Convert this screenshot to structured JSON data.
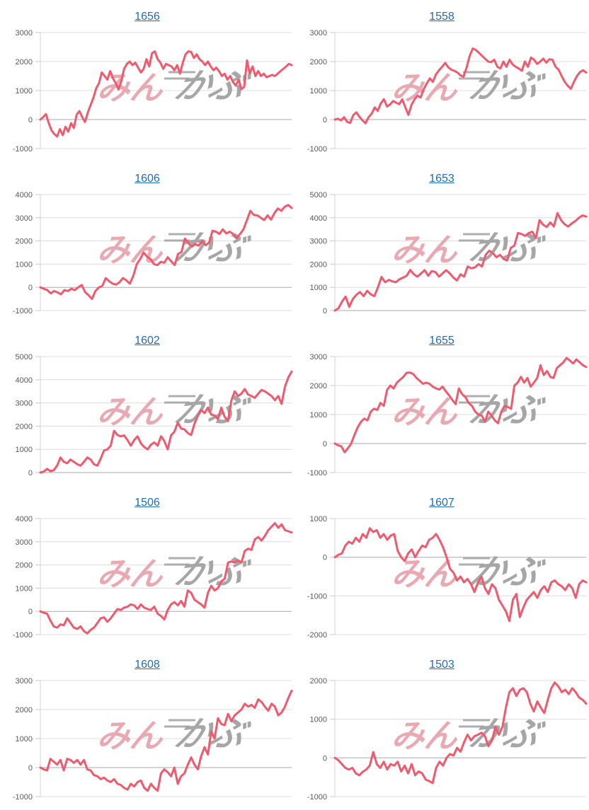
{
  "styles": {
    "background": "#ffffff",
    "line_color": "#ee5a6e",
    "grid_color": "#dcdcdc",
    "zero_line_color": "#aaaaaa",
    "axis_line_color": "#d3d3d3",
    "tick_stub_color": "#c9c9c9",
    "tick_label_color": "#595959",
    "title_color": "#1e6bb8",
    "watermark_pink": "#e7a0ab",
    "watermark_gray": "#a2a2a2"
  },
  "watermark": {
    "pink_text": "みん",
    "gray_text": "かぶ"
  },
  "chart_data": [
    {
      "type": "line",
      "title": "1656",
      "ylim": [
        -1000,
        3000
      ],
      "yticks": [
        3000,
        2000,
        1000,
        0,
        -1000
      ],
      "grid": true,
      "xlabel": "",
      "ylabel": "",
      "values": [
        0,
        80,
        190,
        -120,
        -375,
        -500,
        -585,
        -330,
        -540,
        -250,
        -420,
        -125,
        -290,
        170,
        290,
        80,
        -85,
        250,
        500,
        750,
        1080,
        1250,
        1625,
        1500,
        1375,
        1670,
        1420,
        1250,
        1040,
        1330,
        1750,
        1920,
        2000,
        1875,
        1960,
        1790,
        1625,
        1750,
        2080,
        1830,
        2290,
        2350,
        2080,
        1960,
        1750,
        1920,
        1875,
        1830,
        1700,
        1875,
        1580,
        1960,
        2250,
        2350,
        2330,
        2125,
        2250,
        2080,
        2000,
        1875,
        2000,
        1830,
        1700,
        1790,
        1670,
        1500,
        1580,
        1375,
        1500,
        1290,
        1170,
        1375,
        1050,
        1125,
        2040,
        1580,
        1830,
        1500,
        1670,
        1500,
        1580,
        1460,
        1500,
        1540,
        1500,
        1580,
        1670,
        1750,
        1830,
        1920,
        1875
      ]
    },
    {
      "type": "line",
      "title": "1558",
      "ylim": [
        -1000,
        3000
      ],
      "yticks": [
        3000,
        2000,
        1000,
        0,
        -1000
      ],
      "grid": true,
      "xlabel": "",
      "ylabel": "",
      "values": [
        0,
        30,
        -30,
        80,
        -80,
        -120,
        150,
        250,
        100,
        -30,
        -130,
        80,
        200,
        420,
        300,
        560,
        700,
        450,
        520,
        640,
        580,
        530,
        700,
        420,
        160,
        500,
        700,
        820,
        760,
        1050,
        1250,
        1420,
        1300,
        1560,
        1700,
        1820,
        1950,
        1800,
        1720,
        1680,
        1620,
        1520,
        1480,
        1800,
        2200,
        2450,
        2400,
        2300,
        2200,
        2100,
        2000,
        1980,
        2060,
        1820,
        1760,
        2000,
        1820,
        2060,
        1900,
        1820,
        1760,
        1680,
        2000,
        1820,
        2140,
        2060,
        1920,
        2000,
        2100,
        1960,
        2080,
        2060,
        1820,
        1720,
        1500,
        1300,
        1160,
        1060,
        1300,
        1500,
        1640,
        1700,
        1620
      ]
    },
    {
      "type": "line",
      "title": "1606",
      "ylim": [
        -1000,
        4000
      ],
      "yticks": [
        4000,
        3000,
        2000,
        1000,
        0,
        -1000
      ],
      "grid": true,
      "xlabel": "",
      "ylabel": "",
      "values": [
        0,
        -60,
        -120,
        -260,
        -160,
        -220,
        -300,
        -120,
        -160,
        -60,
        -120,
        0,
        100,
        -200,
        -340,
        -500,
        -160,
        0,
        60,
        400,
        260,
        160,
        120,
        220,
        400,
        300,
        160,
        500,
        1000,
        1220,
        1500,
        1320,
        1220,
        1000,
        960,
        1100,
        1060,
        1300,
        1120,
        960,
        1440,
        1520,
        2100,
        1900,
        1760,
        1860,
        1800,
        2000,
        1820,
        1920,
        2440,
        2400,
        2300,
        2500,
        2320,
        2400,
        2300,
        2120,
        2300,
        2500,
        2900,
        3300,
        3120,
        3100,
        3000,
        2900,
        3100,
        2920,
        3200,
        3400,
        3300,
        3480,
        3550,
        3420
      ]
    },
    {
      "type": "line",
      "title": "1653",
      "ylim": [
        0,
        5000
      ],
      "yticks": [
        5000,
        4000,
        3000,
        2000,
        1000,
        0
      ],
      "grid": true,
      "xlabel": "",
      "ylabel": "",
      "values": [
        0,
        100,
        380,
        600,
        160,
        500,
        680,
        800,
        620,
        850,
        700,
        620,
        1000,
        1450,
        1220,
        1320,
        1260,
        1220,
        1350,
        1420,
        1500,
        1750,
        1560,
        1460,
        1600,
        1740,
        1500,
        1700,
        1660,
        1460,
        1600,
        1740,
        1600,
        1420,
        1300,
        1560,
        1460,
        1900,
        1820,
        1860,
        2000,
        1900,
        2400,
        2580,
        2480,
        2300,
        2400,
        2220,
        2160,
        2700,
        2800,
        3340,
        3300,
        3220,
        3340,
        3400,
        3120,
        3900,
        3700,
        3600,
        3800,
        3620,
        4200,
        3900,
        3720,
        3620,
        3760,
        3860,
        4000,
        4100,
        4050
      ]
    },
    {
      "type": "line",
      "title": "1602",
      "ylim": [
        0,
        5000
      ],
      "yticks": [
        5000,
        4000,
        3000,
        2000,
        1000,
        0
      ],
      "grid": true,
      "xlabel": "",
      "ylabel": "",
      "values": [
        0,
        40,
        160,
        60,
        100,
        300,
        650,
        460,
        400,
        560,
        460,
        360,
        300,
        460,
        650,
        560,
        360,
        300,
        600,
        950,
        1000,
        1160,
        1800,
        1620,
        1560,
        1600,
        1400,
        1160,
        1400,
        1560,
        1260,
        1100,
        1000,
        1200,
        1300,
        1160,
        1560,
        1360,
        1000,
        1600,
        1760,
        2150,
        1900,
        1860,
        1700,
        1620,
        2100,
        2450,
        2700,
        2560,
        2800,
        2500,
        2460,
        2300,
        2800,
        2400,
        2220,
        3100,
        3500,
        3300,
        3400,
        3600,
        3360,
        3300,
        3220,
        3400,
        3560,
        3500,
        3400,
        3300,
        3120,
        3300,
        2960,
        3700,
        4100,
        4350
      ]
    },
    {
      "type": "line",
      "title": "1655",
      "ylim": [
        -1000,
        3000
      ],
      "yticks": [
        3000,
        2000,
        1000,
        0,
        -1000
      ],
      "grid": true,
      "xlabel": "",
      "ylabel": "",
      "values": [
        0,
        -60,
        -100,
        -300,
        -160,
        0,
        300,
        560,
        750,
        860,
        800,
        1100,
        1200,
        1160,
        1400,
        1300,
        1850,
        2000,
        1900,
        2100,
        2200,
        2300,
        2440,
        2450,
        2400,
        2260,
        2160,
        2060,
        2100,
        2060,
        1960,
        1900,
        1860,
        1960,
        1800,
        1660,
        1500,
        1360,
        1900,
        1700,
        1600,
        1400,
        1300,
        1100,
        1000,
        960,
        750,
        1100,
        960,
        800,
        700,
        1100,
        1300,
        1260,
        1200,
        2000,
        2100,
        2300,
        2100,
        2260,
        1960,
        2100,
        2260,
        2700,
        2360,
        2500,
        2300,
        2260,
        2600,
        2700,
        2800,
        2950,
        2860,
        2760,
        2900,
        2800,
        2700,
        2640
      ]
    },
    {
      "type": "line",
      "title": "1506",
      "ylim": [
        -1000,
        4000
      ],
      "yticks": [
        4000,
        3000,
        2000,
        1000,
        0,
        -1000
      ],
      "grid": true,
      "xlabel": "",
      "ylabel": "",
      "values": [
        0,
        -60,
        -100,
        -400,
        -650,
        -700,
        -560,
        -600,
        -300,
        -500,
        -700,
        -760,
        -650,
        -850,
        -950,
        -800,
        -700,
        -500,
        -300,
        -260,
        -450,
        -300,
        -100,
        100,
        60,
        160,
        200,
        300,
        260,
        100,
        300,
        160,
        100,
        60,
        200,
        -100,
        -200,
        -350,
        60,
        300,
        400,
        260,
        450,
        200,
        900,
        800,
        500,
        400,
        300,
        160,
        800,
        1100,
        900,
        1000,
        1300,
        1400,
        2100,
        2150,
        2100,
        2200,
        2100,
        2600,
        2700,
        2650,
        3100,
        3200,
        3050,
        3250,
        3500,
        3650,
        3800,
        3600,
        3750,
        3500,
        3450,
        3400
      ]
    },
    {
      "type": "line",
      "title": "1607",
      "ylim": [
        -2000,
        1000
      ],
      "yticks": [
        1000,
        0,
        -1000,
        -2000
      ],
      "grid": true,
      "xlabel": "",
      "ylabel": "",
      "values": [
        0,
        60,
        100,
        300,
        400,
        350,
        500,
        400,
        600,
        500,
        750,
        650,
        700,
        500,
        600,
        450,
        560,
        600,
        160,
        0,
        -100,
        100,
        200,
        0,
        160,
        300,
        260,
        450,
        500,
        600,
        450,
        260,
        0,
        -300,
        -400,
        -600,
        -500,
        -650,
        -560,
        -700,
        -900,
        -650,
        -500,
        -800,
        -950,
        -700,
        -800,
        -1100,
        -1250,
        -1400,
        -1650,
        -1100,
        -950,
        -1550,
        -1300,
        -1100,
        -1000,
        -900,
        -1050,
        -850,
        -750,
        -900,
        -650,
        -600,
        -700,
        -750,
        -850,
        -700,
        -800,
        -1050,
        -700,
        -600,
        -650
      ]
    },
    {
      "type": "line",
      "title": "1608",
      "ylim": [
        -1000,
        3000
      ],
      "yticks": [
        3000,
        2000,
        1000,
        0,
        -1000
      ],
      "grid": true,
      "xlabel": "",
      "ylabel": "",
      "values": [
        0,
        -60,
        -100,
        300,
        200,
        100,
        260,
        -100,
        300,
        260,
        160,
        260,
        100,
        260,
        -60,
        -100,
        -260,
        -300,
        -400,
        -350,
        -450,
        -500,
        -400,
        -560,
        -600,
        -700,
        -760,
        -560,
        -650,
        -500,
        -450,
        -700,
        -800,
        -560,
        -700,
        -800,
        -200,
        -60,
        -160,
        -300,
        0,
        -560,
        -300,
        -200,
        100,
        350,
        100,
        -60,
        400,
        700,
        450,
        1250,
        1000,
        1700,
        1500,
        1460,
        1850,
        1600,
        1800,
        1900,
        2000,
        2200,
        2100,
        2160,
        2060,
        2350,
        2260,
        2100,
        1960,
        2200,
        2100,
        1800,
        1900,
        2100,
        2400,
        2650
      ]
    },
    {
      "type": "line",
      "title": "1503",
      "ylim": [
        -1000,
        2000
      ],
      "yticks": [
        2000,
        1000,
        0,
        -1000
      ],
      "grid": true,
      "xlabel": "",
      "ylabel": "",
      "values": [
        0,
        -60,
        -160,
        -260,
        -300,
        -260,
        -400,
        -450,
        -360,
        -300,
        -200,
        150,
        -160,
        -260,
        -100,
        -300,
        -160,
        -200,
        -100,
        -350,
        -200,
        -400,
        -160,
        -450,
        -350,
        -400,
        -560,
        -600,
        -650,
        -260,
        -100,
        -200,
        0,
        100,
        60,
        260,
        160,
        400,
        600,
        450,
        560,
        600,
        650,
        560,
        300,
        450,
        800,
        600,
        800,
        1300,
        1700,
        1800,
        1600,
        1760,
        1800,
        1700,
        1400,
        1200,
        1460,
        1300,
        1160,
        1500,
        1800,
        1950,
        1850,
        1700,
        1760,
        1650,
        1800,
        1700,
        1560,
        1500,
        1400
      ]
    }
  ]
}
